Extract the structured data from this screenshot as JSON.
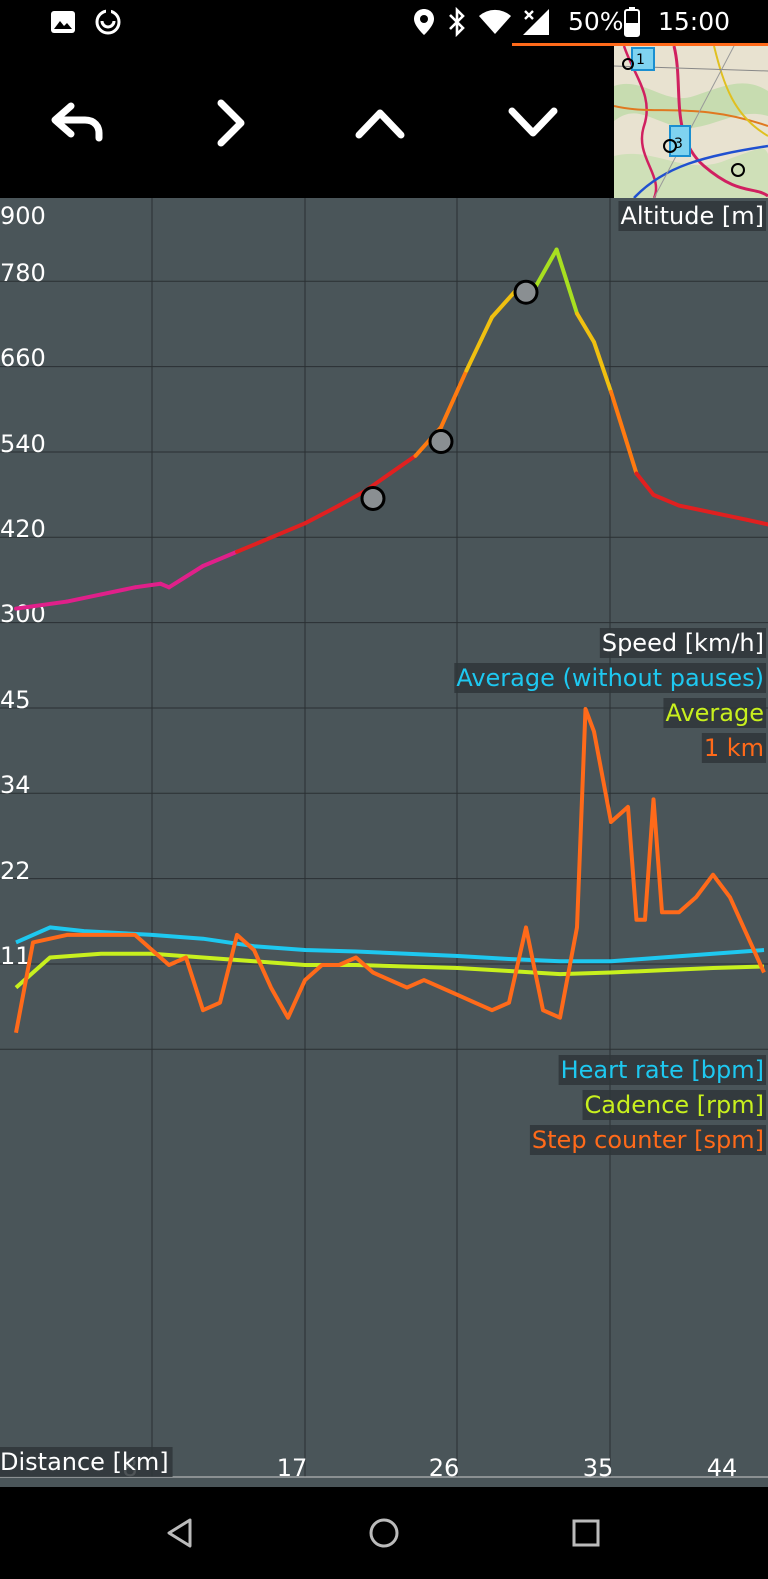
{
  "status_bar": {
    "battery": "50%",
    "time": "15:00",
    "icons": [
      "image-icon",
      "sync-icon",
      "location-icon",
      "bluetooth-icon",
      "wifi-icon",
      "signal-icon",
      "battery-icon"
    ]
  },
  "toolbar": {
    "buttons": [
      "back-arrow-icon",
      "chevron-right-icon",
      "chevron-up-icon",
      "chevron-down-icon"
    ]
  },
  "minimap": {
    "markers": [
      "1",
      "3"
    ]
  },
  "chart": {
    "colors": {
      "background": "#4a5559",
      "grid": "#2a3033",
      "heart_rate": "#1ec8f0",
      "cadence": "#c8f01e",
      "step_counter": "#ff6a1a",
      "speed_1km": "#ff6a1a",
      "speed_average": "#c8f01e",
      "speed_average_no_pauses": "#1ec8f0"
    },
    "altitude_label": "Altitude [m]",
    "speed_label": "Speed [km/h]",
    "speed_legend": [
      "Average (without pauses)",
      "Average",
      "1 km"
    ],
    "sensor_legend": [
      "Heart rate [bpm]",
      "Cadence [rpm]",
      "Step counter [spm]"
    ],
    "altitude_ticks": [
      "900",
      "780",
      "660",
      "540",
      "420",
      "300"
    ],
    "speed_ticks": [
      "45",
      "34",
      "22",
      "11"
    ],
    "distance_label": "Distance [km]",
    "distance_ticks": [
      "8",
      "17",
      "26",
      "35",
      "44"
    ]
  },
  "chart_data": {
    "type": "line",
    "xlabel": "Distance [km]",
    "altitude": {
      "ylabel": "Altitude [m]",
      "ylim": [
        300,
        900
      ],
      "x": [
        0,
        3,
        5,
        7,
        8.5,
        9,
        11,
        13,
        15,
        17,
        19,
        20.5,
        22,
        23.5,
        25,
        26.5,
        28,
        29.5,
        30.5,
        31.8,
        33,
        34,
        35,
        36.5,
        37.5,
        39,
        41,
        43,
        44.5
      ],
      "y": [
        345,
        355,
        365,
        375,
        380,
        375,
        405,
        425,
        445,
        465,
        490,
        510,
        535,
        560,
        600,
        680,
        755,
        795,
        795,
        850,
        760,
        720,
        650,
        535,
        505,
        490,
        480,
        470,
        462
      ],
      "markers": [
        {
          "x": 21,
          "y": 500
        },
        {
          "x": 25,
          "y": 580
        },
        {
          "x": 30,
          "y": 790
        }
      ]
    },
    "speed": {
      "ylabel": "Speed [km/h]",
      "ylim": [
        0,
        45
      ],
      "series": [
        {
          "name": "1 km",
          "x": [
            0,
            1,
            3,
            5,
            7,
            8,
            9,
            10,
            11,
            12,
            13,
            14,
            15,
            16,
            17,
            18,
            19,
            20,
            21,
            22,
            23,
            24,
            25,
            26,
            27,
            28,
            29,
            30,
            31,
            32,
            33,
            33.5,
            34,
            35,
            36,
            36.5,
            37,
            37.5,
            38,
            39,
            40,
            41,
            42,
            43,
            44
          ],
          "y": [
            2,
            14,
            15,
            15,
            15,
            13,
            11,
            12,
            5,
            6,
            15,
            13,
            8,
            4,
            9,
            11,
            11,
            12,
            10,
            9,
            8,
            9,
            8,
            7,
            6,
            5,
            6,
            16,
            5,
            4,
            16,
            45,
            42,
            30,
            32,
            17,
            17,
            33,
            18,
            18,
            20,
            23,
            20,
            15,
            10
          ]
        },
        {
          "name": "Average",
          "x": [
            0,
            2,
            5,
            8,
            11,
            14,
            17,
            20,
            23,
            26,
            29,
            32,
            35,
            38,
            41,
            44
          ],
          "y": [
            8,
            12,
            12.5,
            12.5,
            12,
            11.5,
            11,
            11,
            10.8,
            10.6,
            10.2,
            9.8,
            10,
            10.3,
            10.6,
            10.8
          ]
        },
        {
          "name": "Average (without pauses)",
          "x": [
            0,
            2,
            4,
            8,
            11,
            14,
            17,
            20,
            23,
            26,
            29,
            32,
            35,
            38,
            41,
            44
          ],
          "y": [
            14,
            16,
            15.5,
            15,
            14.5,
            13.5,
            13,
            12.8,
            12.5,
            12.2,
            11.8,
            11.5,
            11.5,
            12,
            12.5,
            13
          ]
        }
      ]
    },
    "xticks": [
      8,
      17,
      26,
      35,
      44
    ]
  }
}
